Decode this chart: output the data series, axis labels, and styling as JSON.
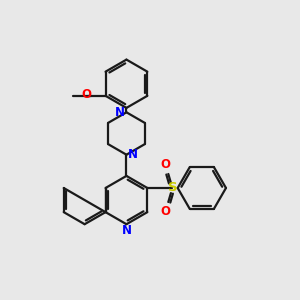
{
  "background_color": "#e8e8e8",
  "bond_color": "#1a1a1a",
  "N_color": "#0000ff",
  "O_color": "#ff0000",
  "S_color": "#cccc00",
  "line_width": 1.6,
  "figsize": [
    3.0,
    3.0
  ],
  "dpi": 100,
  "xlim": [
    0,
    10
  ],
  "ylim": [
    0,
    10
  ]
}
